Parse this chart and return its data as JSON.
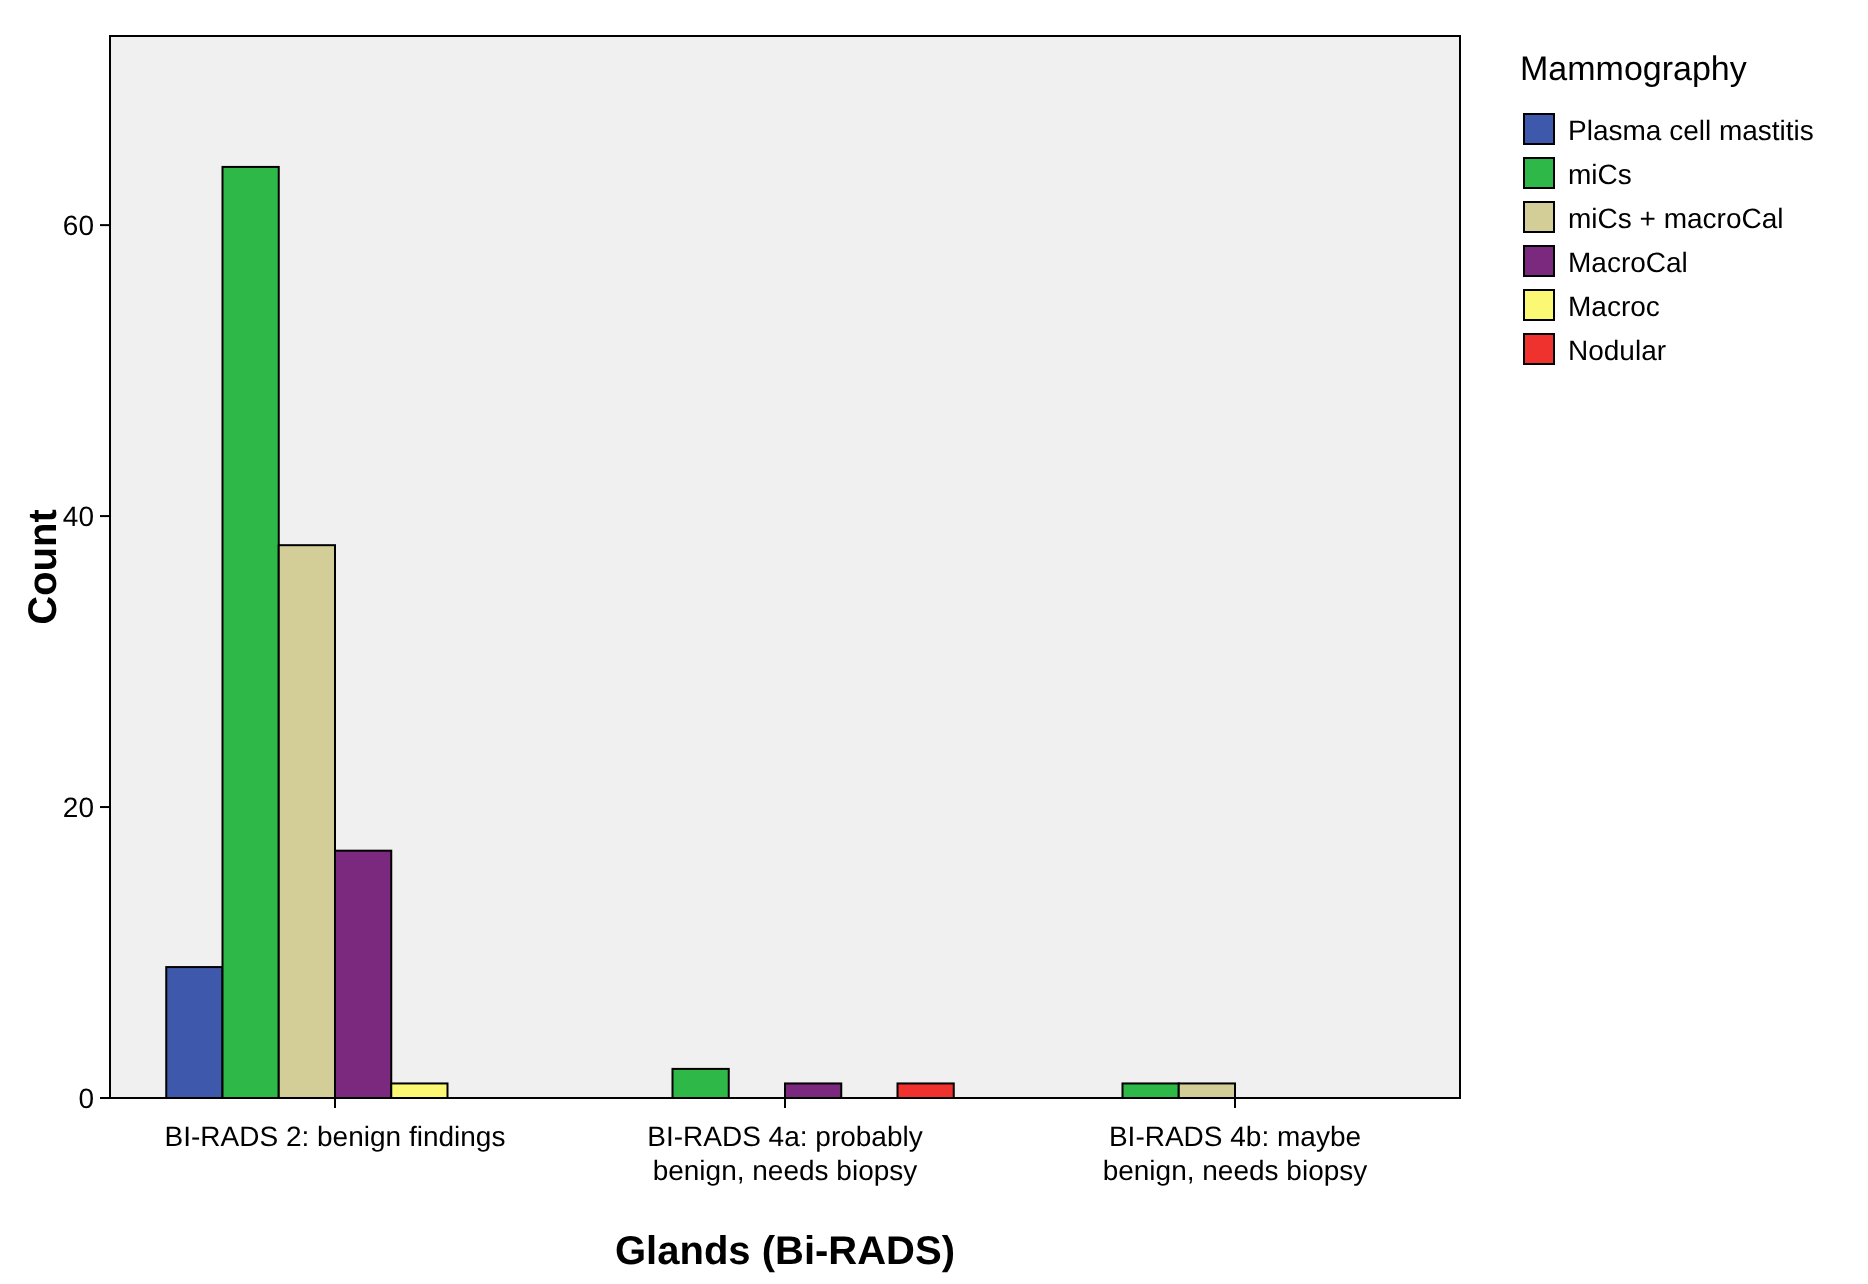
{
  "chart_data": {
    "type": "bar",
    "xlabel": "Glands (Bi-RADS)",
    "ylabel": "Count",
    "legend_title": "Mammography",
    "legend": "right",
    "categories": [
      "BI-RADS 2: benign findings",
      "BI-RADS 4a: probably benign, needs biopsy",
      "BI-RADS 4b: maybe benign, needs biopsy"
    ],
    "ylim": [
      0,
      73
    ],
    "yticks": [
      0,
      20,
      40,
      60
    ],
    "series": [
      {
        "name": "Plasma cell mastitis",
        "color": "#3e58ac",
        "values": [
          9,
          0,
          0
        ]
      },
      {
        "name": "miCs",
        "color": "#2eb848",
        "values": [
          64,
          2,
          1
        ]
      },
      {
        "name": "miCs + macroCal",
        "color": "#d3ce97",
        "values": [
          38,
          0,
          1
        ]
      },
      {
        "name": "MacroCal",
        "color": "#7b287f",
        "values": [
          17,
          1,
          0
        ]
      },
      {
        "name": "Macroc",
        "color": "#fbf873",
        "values": [
          1,
          0,
          0
        ]
      },
      {
        "name": "Nodular",
        "color": "#f0322e",
        "values": [
          0,
          1,
          0
        ]
      }
    ]
  }
}
